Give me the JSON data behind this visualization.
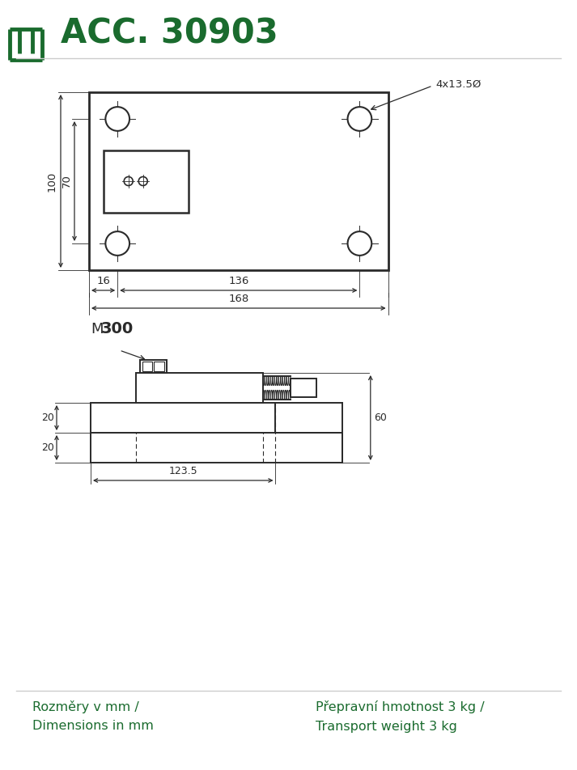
{
  "title": "ACC. 30903",
  "green_color": "#1a6b2e",
  "dark_color": "#222222",
  "line_color": "#2a2a2a",
  "bg_color": "#ffffff",
  "bottom_left_text1": "Rozměry v mm /",
  "bottom_left_text2": "Dimensions in mm",
  "bottom_right_text1": "Přepravní hmotnost 3 kg /",
  "bottom_right_text2": "Transport weight 3 kg",
  "model_label": "M300",
  "hole_label": "4x13.5Ø"
}
